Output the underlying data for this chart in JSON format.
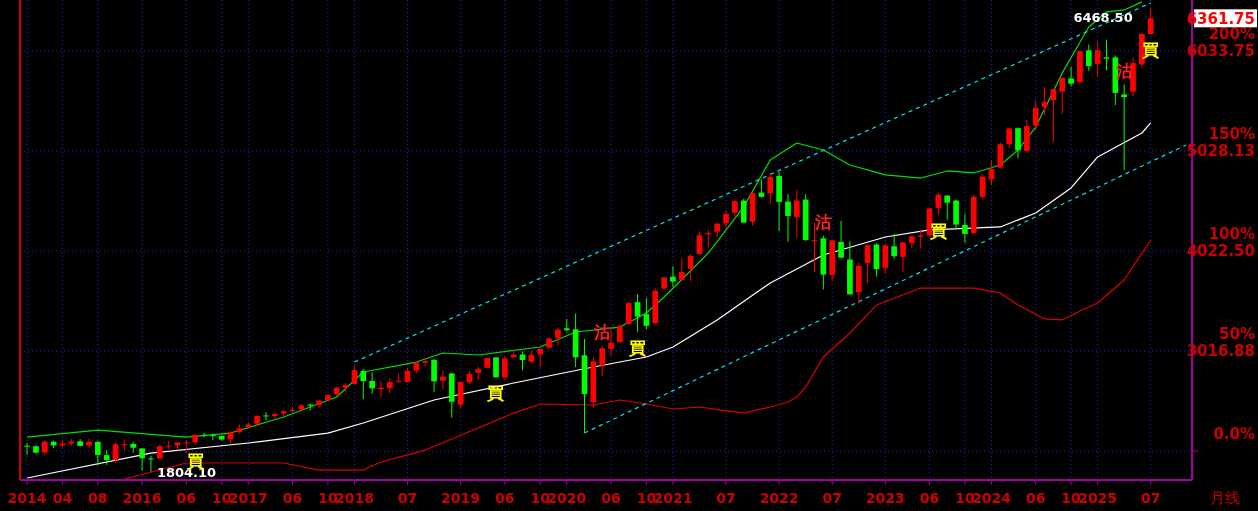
{
  "chart_data": {
    "type": "candlestick",
    "x": [
      "2014-12",
      "2015-01",
      "2015-02",
      "2015-03",
      "2015-04",
      "2015-05",
      "2015-06",
      "2015-07",
      "2015-08",
      "2015-09",
      "2015-10",
      "2015-11",
      "2015-12",
      "2016-01",
      "2016-02",
      "2016-03",
      "2016-04",
      "2016-05",
      "2016-06",
      "2016-07",
      "2016-08",
      "2016-09",
      "2016-10",
      "2016-11",
      "2016-12",
      "2017-01",
      "2017-02",
      "2017-03",
      "2017-04",
      "2017-05",
      "2017-06",
      "2017-07",
      "2017-08",
      "2017-09",
      "2017-10",
      "2017-11",
      "2017-12",
      "2018-01",
      "2018-02",
      "2018-03",
      "2018-04",
      "2018-05",
      "2018-06",
      "2018-07",
      "2018-08",
      "2018-09",
      "2018-10",
      "2018-11",
      "2018-12",
      "2019-01",
      "2019-02",
      "2019-03",
      "2019-04",
      "2019-05",
      "2019-06",
      "2019-07",
      "2019-08",
      "2019-09",
      "2019-10",
      "2019-11",
      "2019-12",
      "2020-01",
      "2020-02",
      "2020-03",
      "2020-04",
      "2020-05",
      "2020-06",
      "2020-07",
      "2020-08",
      "2020-09",
      "2020-10",
      "2020-11",
      "2020-12",
      "2021-01",
      "2021-02",
      "2021-03",
      "2021-04",
      "2021-05",
      "2021-06",
      "2021-07",
      "2021-08",
      "2021-09",
      "2021-10",
      "2021-11",
      "2021-12",
      "2022-01",
      "2022-02",
      "2022-03",
      "2022-04",
      "2022-05",
      "2022-06",
      "2022-07",
      "2022-08",
      "2022-09",
      "2022-10",
      "2022-11",
      "2022-12",
      "2023-01",
      "2023-02",
      "2023-03",
      "2023-04",
      "2023-05",
      "2023-06",
      "2023-07",
      "2023-08",
      "2023-09",
      "2023-10",
      "2023-11",
      "2023-12",
      "2024-01",
      "2024-02",
      "2024-03",
      "2024-04",
      "2024-05",
      "2024-06",
      "2024-07",
      "2024-08",
      "2024-09",
      "2024-10",
      "2024-11",
      "2024-12",
      "2025-01",
      "2025-02",
      "2025-03",
      "2025-04",
      "2025-05",
      "2025-06",
      "2025-07"
    ],
    "ohlc": [
      [
        2065,
        2093,
        1972,
        2059
      ],
      [
        2059,
        2072,
        1988,
        1995
      ],
      [
        1996,
        2120,
        1980,
        2105
      ],
      [
        2105,
        2117,
        2040,
        2068
      ],
      [
        2067,
        2126,
        2048,
        2086
      ],
      [
        2087,
        2135,
        2068,
        2107
      ],
      [
        2109,
        2130,
        2056,
        2063
      ],
      [
        2067,
        2133,
        2044,
        2104
      ],
      [
        2104,
        2113,
        1867,
        1972
      ],
      [
        1970,
        2021,
        1872,
        1920
      ],
      [
        1920,
        2094,
        1893,
        2079
      ],
      [
        2080,
        2117,
        2019,
        2080
      ],
      [
        2082,
        2104,
        1993,
        2044
      ],
      [
        2038,
        2038,
        1812,
        1940
      ],
      [
        1937,
        1963,
        1804.1,
        1932
      ],
      [
        1937,
        2073,
        1931,
        2060
      ],
      [
        2057,
        2111,
        2033,
        2065
      ],
      [
        2067,
        2103,
        2025,
        2097
      ],
      [
        2094,
        2120,
        1992,
        2099
      ],
      [
        2099,
        2178,
        2074,
        2174
      ],
      [
        2174,
        2194,
        2147,
        2171
      ],
      [
        2171,
        2188,
        2120,
        2168
      ],
      [
        2164,
        2169,
        2114,
        2126
      ],
      [
        2129,
        2214,
        2084,
        2199
      ],
      [
        2201,
        2278,
        2187,
        2239
      ],
      [
        2251,
        2301,
        2245,
        2279
      ],
      [
        2285,
        2372,
        2272,
        2364
      ],
      [
        2369,
        2401,
        2322,
        2363
      ],
      [
        2363,
        2398,
        2329,
        2384
      ],
      [
        2389,
        2419,
        2353,
        2412
      ],
      [
        2416,
        2454,
        2405,
        2423
      ],
      [
        2431,
        2484,
        2407,
        2470
      ],
      [
        2478,
        2491,
        2418,
        2472
      ],
      [
        2474,
        2519,
        2447,
        2519
      ],
      [
        2522,
        2582,
        2520,
        2575
      ],
      [
        2583,
        2658,
        2566,
        2648
      ],
      [
        2646,
        2695,
        2605,
        2674
      ],
      [
        2684,
        2873,
        2683,
        2824
      ],
      [
        2817,
        2836,
        2533,
        2714
      ],
      [
        2716,
        2802,
        2586,
        2641
      ],
      [
        2634,
        2718,
        2553,
        2648
      ],
      [
        2643,
        2743,
        2594,
        2705
      ],
      [
        2718,
        2791,
        2699,
        2718
      ],
      [
        2705,
        2848,
        2699,
        2816
      ],
      [
        2822,
        2917,
        2796,
        2902
      ],
      [
        2897,
        2941,
        2864,
        2914
      ],
      [
        2927,
        2940,
        2604,
        2712
      ],
      [
        2718,
        2815,
        2631,
        2760
      ],
      [
        2791,
        2800,
        2347,
        2507
      ],
      [
        2477,
        2708,
        2443,
        2704
      ],
      [
        2703,
        2814,
        2682,
        2784
      ],
      [
        2798,
        2860,
        2723,
        2834
      ],
      [
        2848,
        2949,
        2848,
        2946
      ],
      [
        2953,
        2955,
        2751,
        2752
      ],
      [
        2751,
        2964,
        2728,
        2942
      ],
      [
        2953,
        3028,
        2952,
        2980
      ],
      [
        2981,
        3014,
        2822,
        2926
      ],
      [
        2910,
        3022,
        2891,
        2977
      ],
      [
        2984,
        3050,
        2856,
        3038
      ],
      [
        3051,
        3156,
        3050,
        3141
      ],
      [
        3144,
        3248,
        3070,
        3231
      ],
      [
        3245,
        3338,
        3214,
        3226
      ],
      [
        3235,
        3394,
        2855,
        2954
      ],
      [
        2974,
        3137,
        2192,
        2585
      ],
      [
        2499,
        2955,
        2447,
        2912
      ],
      [
        2870,
        3068,
        2767,
        3044
      ],
      [
        3038,
        3233,
        2966,
        3100
      ],
      [
        3105,
        3280,
        3101,
        3271
      ],
      [
        3289,
        3510,
        3280,
        3500
      ],
      [
        3508,
        3588,
        3210,
        3363
      ],
      [
        3386,
        3550,
        3234,
        3270
      ],
      [
        3297,
        3646,
        3280,
        3622
      ],
      [
        3645,
        3760,
        3633,
        3756
      ],
      [
        3764,
        3870,
        3662,
        3714
      ],
      [
        3732,
        3951,
        3725,
        3811
      ],
      [
        3842,
        3994,
        3723,
        3973
      ],
      [
        3992,
        4218,
        3992,
        4181
      ],
      [
        4191,
        4238,
        4056,
        4204
      ],
      [
        4217,
        4302,
        4164,
        4298
      ],
      [
        4301,
        4430,
        4234,
        4395
      ],
      [
        4407,
        4538,
        4367,
        4523
      ],
      [
        4529,
        4546,
        4306,
        4308
      ],
      [
        4317,
        4608,
        4279,
        4605
      ],
      [
        4610,
        4744,
        4560,
        4567
      ],
      [
        4602,
        4808,
        4495,
        4766
      ],
      [
        4778,
        4819,
        4222,
        4516
      ],
      [
        4519,
        4595,
        4115,
        4374
      ],
      [
        4364,
        4637,
        4157,
        4530
      ],
      [
        4540,
        4594,
        4124,
        4132
      ],
      [
        4131,
        4308,
        3811,
        4132
      ],
      [
        4150,
        4177,
        3637,
        3785
      ],
      [
        3782,
        4140,
        3723,
        4130
      ],
      [
        4113,
        4325,
        3954,
        3955
      ],
      [
        3937,
        4119,
        3585,
        3586
      ],
      [
        3610,
        3906,
        3492,
        3872
      ],
      [
        3902,
        4080,
        3698,
        4080
      ],
      [
        4087,
        4101,
        3764,
        3840
      ],
      [
        3853,
        4095,
        3795,
        4077
      ],
      [
        4070,
        4195,
        3943,
        3970
      ],
      [
        3963,
        4110,
        3809,
        4109
      ],
      [
        4102,
        4170,
        4049,
        4169
      ],
      [
        4166,
        4232,
        4048,
        4180
      ],
      [
        4181,
        4458,
        4167,
        4450
      ],
      [
        4456,
        4607,
        4386,
        4589
      ],
      [
        4579,
        4584,
        4336,
        4508
      ],
      [
        4530,
        4541,
        4239,
        4288
      ],
      [
        4284,
        4393,
        4104,
        4194
      ],
      [
        4202,
        4587,
        4187,
        4568
      ],
      [
        4568,
        4794,
        4546,
        4770
      ],
      [
        4743,
        4932,
        4683,
        4846
      ],
      [
        4861,
        5111,
        4853,
        5096
      ],
      [
        5098,
        5265,
        5057,
        5254
      ],
      [
        5257,
        5264,
        4954,
        5036
      ],
      [
        5030,
        5342,
        5012,
        5278
      ],
      [
        5284,
        5524,
        5235,
        5460
      ],
      [
        5471,
        5670,
        5390,
        5522
      ],
      [
        5537,
        5651,
        5120,
        5648
      ],
      [
        5624,
        5767,
        5403,
        5762
      ],
      [
        5758,
        5878,
        5675,
        5705
      ],
      [
        5723,
        6045,
        5696,
        6032
      ],
      [
        6040,
        6100,
        5833,
        5882
      ],
      [
        5903,
        6128,
        5774,
        6041
      ],
      [
        5969,
        6147,
        5837,
        5955
      ],
      [
        5968,
        5987,
        5489,
        5612
      ],
      [
        5597,
        5696,
        4835,
        5569
      ],
      [
        5625,
        5968,
        5578,
        5912
      ],
      [
        5897,
        6216,
        5861,
        6205
      ],
      [
        6204,
        6468.5,
        6202,
        6361.75
      ]
    ],
    "colors": [
      "#00ff00",
      "#00ff00",
      "#ff0000",
      "#00ff00",
      "#ff0000",
      "#ff0000",
      "#00ff00",
      "#ff0000",
      "#00ff00",
      "#00ff00",
      "#ff0000",
      "#ff0000",
      "#00ff00",
      "#00ff00",
      "#00ff00",
      "#ff0000",
      "#ff0000",
      "#ff0000",
      "#ff0000",
      "#ff0000",
      "#00ff00",
      "#00ff00",
      "#00ff00",
      "#ff0000",
      "#ff0000",
      "#ff0000",
      "#ff0000",
      "#00ff00",
      "#ff0000",
      "#ff0000",
      "#ff0000",
      "#ff0000",
      "#00ff00",
      "#ff0000",
      "#ff0000",
      "#ff0000",
      "#ff0000",
      "#ff0000",
      "#00ff00",
      "#00ff00",
      "#ff0000",
      "#ff0000",
      "#ff0000",
      "#ff0000",
      "#ff0000",
      "#ff0000",
      "#00ff00",
      "#ff0000",
      "#00ff00",
      "#ff0000",
      "#ff0000",
      "#ff0000",
      "#ff0000",
      "#00ff00",
      "#ff0000",
      "#ff0000",
      "#00ff00",
      "#ff0000",
      "#ff0000",
      "#ff0000",
      "#ff0000",
      "#00ff00",
      "#00ff00",
      "#00ff00",
      "#ff0000",
      "#ff0000",
      "#ff0000",
      "#ff0000",
      "#ff0000",
      "#00ff00",
      "#00ff00",
      "#ff0000",
      "#ff0000",
      "#00ff00",
      "#ff0000",
      "#ff0000",
      "#ff0000",
      "#ff0000",
      "#ff0000",
      "#ff0000",
      "#ff0000",
      "#00ff00",
      "#ff0000",
      "#00ff00",
      "#ff0000",
      "#00ff00",
      "#00ff00",
      "#ff0000",
      "#00ff00",
      "#ff0000",
      "#00ff00",
      "#ff0000",
      "#00ff00",
      "#00ff00",
      "#ff0000",
      "#ff0000",
      "#00ff00",
      "#ff0000",
      "#00ff00",
      "#ff0000",
      "#ff0000",
      "#ff0000",
      "#ff0000",
      "#ff0000",
      "#00ff00",
      "#00ff00",
      "#00ff00",
      "#ff0000",
      "#ff0000",
      "#ff0000",
      "#ff0000",
      "#ff0000",
      "#00ff00",
      "#ff0000",
      "#ff0000",
      "#ff0000",
      "#ff0000",
      "#ff0000",
      "#00ff00",
      "#ff0000",
      "#00ff00",
      "#ff0000",
      "#00ff00",
      "#00ff00",
      "#00ff00",
      "#ff0000",
      "#ff0000",
      "#ff0000"
    ],
    "series": [
      {
        "type": "line",
        "color": "#ffffff",
        "x": [
          "2014-12",
          "2016-02",
          "2017-01",
          "2017-10",
          "2018-02",
          "2018-10",
          "2019-07",
          "2020-04",
          "2020-10",
          "2021-01",
          "2021-06",
          "2021-12",
          "2022-06",
          "2023-01",
          "2023-06",
          "2024-02",
          "2024-06",
          "2024-10",
          "2025-01",
          "2025-06",
          "2025-07"
        ],
        "values": [
          1740,
          1991,
          2092,
          2192,
          2293,
          2524,
          2695,
          2856,
          2957,
          3057,
          3329,
          3701,
          3982,
          4163,
          4234,
          4264,
          4405,
          4656,
          4968,
          5209,
          5310
        ]
      },
      {
        "type": "line",
        "color": "#00e000",
        "x": [
          "2014-12",
          "2015-08",
          "2016-06",
          "2016-11",
          "2017-05",
          "2017-11",
          "2018-02",
          "2018-08",
          "2018-11",
          "2019-03",
          "2019-10",
          "2020-02",
          "2020-07",
          "2020-10",
          "2020-12",
          "2021-05",
          "2021-09",
          "2021-12",
          "2022-03",
          "2022-06",
          "2022-09",
          "2023-01",
          "2023-05",
          "2023-08",
          "2023-11",
          "2024-02",
          "2024-04",
          "2024-06",
          "2024-09",
          "2024-12",
          "2025-02",
          "2025-04",
          "2025-06"
        ],
        "values": [
          2152,
          2222,
          2152,
          2192,
          2353,
          2554,
          2806,
          2906,
          2997,
          2977,
          3057,
          3208,
          3258,
          3399,
          3560,
          4002,
          4465,
          4938,
          5108,
          5038,
          4887,
          4787,
          4756,
          4827,
          4807,
          4887,
          5038,
          5269,
          5813,
          6275,
          6426,
          6446,
          6527
        ]
      },
      {
        "type": "line",
        "color": "#e00000",
        "x": [
          "2015-11",
          "2016-06",
          "2017-05",
          "2017-09",
          "2018-02",
          "2018-04",
          "2018-09",
          "2019-07",
          "2019-10",
          "2020-04",
          "2020-07",
          "2020-10",
          "2021-01",
          "2021-04",
          "2021-09",
          "2021-12",
          "2022-02",
          "2022-03",
          "2022-04",
          "2022-06",
          "2022-09",
          "2022-12",
          "2023-05",
          "2023-11",
          "2024-02",
          "2024-04",
          "2024-07",
          "2024-09",
          "2024-11",
          "2025-01",
          "2025-04",
          "2025-07"
        ],
        "values": [
          1730,
          1891,
          1891,
          1820,
          1820,
          1901,
          2021,
          2393,
          2484,
          2474,
          2524,
          2484,
          2434,
          2454,
          2393,
          2454,
          2504,
          2554,
          2655,
          2957,
          3198,
          3479,
          3650,
          3650,
          3600,
          3479,
          3339,
          3329,
          3419,
          3500,
          3731,
          4133
        ]
      },
      {
        "type": "line",
        "color": "#00e5ee",
        "line_style": "dashed",
        "x": [
          "2018-01",
          "2025-07"
        ],
        "values": [
          2906,
          6517
        ]
      },
      {
        "type": "line",
        "color": "#00e5ee",
        "line_style": "dashed",
        "x": [
          "2020-03",
          "2025-11"
        ],
        "values": [
          2192,
          5089
        ]
      }
    ],
    "xlim": [
      "2014-11-07",
      "2025-11-21"
    ],
    "xticks": [
      {
        "value": "2014-12",
        "label": "2014"
      },
      {
        "value": "2015-04",
        "label": "04"
      },
      {
        "value": "2015-08",
        "label": "08"
      },
      {
        "value": "2016-01",
        "label": "2016"
      },
      {
        "value": "2016-06",
        "label": "06"
      },
      {
        "value": "2016-10",
        "label": "10"
      },
      {
        "value": "2017-01",
        "label": "2017"
      },
      {
        "value": "2017-06",
        "label": "06"
      },
      {
        "value": "2017-10",
        "label": "10"
      },
      {
        "value": "2018-01",
        "label": "2018"
      },
      {
        "value": "2018-07",
        "label": "07"
      },
      {
        "value": "2019-01",
        "label": "2019"
      },
      {
        "value": "2019-06",
        "label": "06"
      },
      {
        "value": "2019-10",
        "label": "10"
      },
      {
        "value": "2020-01",
        "label": "2020"
      },
      {
        "value": "2020-06",
        "label": "06"
      },
      {
        "value": "2020-10",
        "label": "10"
      },
      {
        "value": "2021-01",
        "label": "2021"
      },
      {
        "value": "2021-07",
        "label": "07"
      },
      {
        "value": "2022-01",
        "label": "2022"
      },
      {
        "value": "2022-07",
        "label": "07"
      },
      {
        "value": "2023-01",
        "label": "2023"
      },
      {
        "value": "2023-06",
        "label": "06"
      },
      {
        "value": "2023-10",
        "label": "10"
      },
      {
        "value": "2024-01",
        "label": "2024"
      },
      {
        "value": "2024-06",
        "label": "06"
      },
      {
        "value": "2024-10",
        "label": "10"
      },
      {
        "value": "2025-01",
        "label": "2025"
      },
      {
        "value": "2025-07",
        "label": "07"
      }
    ],
    "ylim": [
      1720,
      6546
    ],
    "yticks": [
      {
        "value": 3016.88,
        "label": "3016.88"
      },
      {
        "value": 4022.5,
        "label": "4022.50"
      },
      {
        "value": 5028.13,
        "label": "5028.13"
      },
      {
        "value": 6033.75,
        "label": "6033.75"
      }
    ],
    "y2lim": [
      -14.48,
      225.47
    ],
    "y2ticks": [
      {
        "value": 0,
        "label": "0.0%"
      },
      {
        "value": 50,
        "label": "50%"
      },
      {
        "value": 100,
        "label": "100%"
      },
      {
        "value": 150,
        "label": "150%"
      },
      {
        "value": 200,
        "label": "200%"
      }
    ],
    "grid": true,
    "annotations": [
      {
        "text": "6468.50",
        "x": "2025-07",
        "y": 6468.5
      },
      {
        "text": "1804.10",
        "x": "2016-02",
        "y": 1804.1
      },
      {
        "text": "6361.75",
        "x": "2025-07",
        "y": 6361.75
      },
      {
        "text": "買",
        "x": "2016-07",
        "y": 2074
      },
      {
        "text": "買",
        "x": "2019-05",
        "y": 2751
      },
      {
        "text": "買",
        "x": "2020-09",
        "y": 3210
      },
      {
        "text": "買",
        "x": "2023-07",
        "y": 4386
      },
      {
        "text": "買",
        "x": "2025-07",
        "y": 6202
      },
      {
        "text": "沽",
        "x": "2020-05",
        "y": 3068
      },
      {
        "text": "沽",
        "x": "2022-06",
        "y": 4177
      },
      {
        "text": "沽",
        "x": "2025-04",
        "y": 5696
      },
      "月线"
    ]
  }
}
